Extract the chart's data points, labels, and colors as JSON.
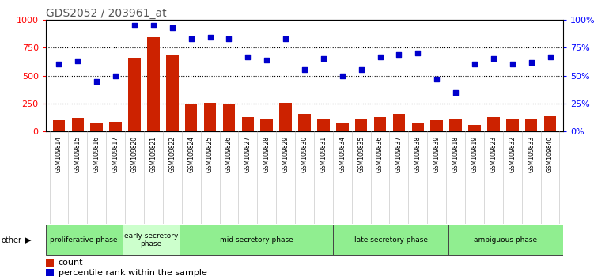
{
  "title": "GDS2052 / 203961_at",
  "samples": [
    "GSM109814",
    "GSM109815",
    "GSM109816",
    "GSM109817",
    "GSM109820",
    "GSM109821",
    "GSM109822",
    "GSM109824",
    "GSM109825",
    "GSM109826",
    "GSM109827",
    "GSM109828",
    "GSM109829",
    "GSM109830",
    "GSM109831",
    "GSM109834",
    "GSM109835",
    "GSM109836",
    "GSM109837",
    "GSM109838",
    "GSM109839",
    "GSM109818",
    "GSM109819",
    "GSM109823",
    "GSM109832",
    "GSM109833",
    "GSM109840"
  ],
  "counts": [
    100,
    120,
    70,
    90,
    660,
    840,
    690,
    240,
    260,
    250,
    130,
    110,
    260,
    160,
    110,
    80,
    110,
    130,
    160,
    70,
    100,
    110,
    60,
    130,
    110,
    110,
    140
  ],
  "percentiles": [
    60,
    63,
    45,
    50,
    95,
    95,
    93,
    83,
    84,
    83,
    67,
    64,
    83,
    55,
    65,
    50,
    55,
    67,
    69,
    70,
    47,
    35,
    60,
    65,
    60,
    62,
    67
  ],
  "phases": [
    {
      "name": "proliferative phase",
      "start": 0,
      "end": 4,
      "color": "#90EE90"
    },
    {
      "name": "early secretory\nphase",
      "start": 4,
      "end": 7,
      "color": "#ccffcc"
    },
    {
      "name": "mid secretory phase",
      "start": 7,
      "end": 15,
      "color": "#90EE90"
    },
    {
      "name": "late secretory phase",
      "start": 15,
      "end": 21,
      "color": "#90EE90"
    },
    {
      "name": "ambiguous phase",
      "start": 21,
      "end": 27,
      "color": "#90EE90"
    }
  ],
  "bar_color": "#CC2200",
  "scatter_color": "#0000CC",
  "ylim_left": [
    0,
    1000
  ],
  "ylim_right": [
    0,
    100
  ],
  "yticks_left": [
    0,
    250,
    500,
    750,
    1000
  ],
  "grid_lines": [
    250,
    500,
    750
  ],
  "background_color": "#ffffff",
  "title_fontsize": 10,
  "other_label": "other"
}
